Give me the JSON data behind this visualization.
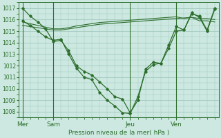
{
  "background_color": "#cce8e0",
  "grid_color": "#a0c8be",
  "line_color": "#2d6e2d",
  "xlabel": "Pression niveau de la mer( hPa )",
  "ylim": [
    1007.5,
    1017.5
  ],
  "yticks": [
    1008,
    1009,
    1010,
    1011,
    1012,
    1013,
    1014,
    1015,
    1016,
    1017
  ],
  "day_labels": [
    "Mer",
    "Sam",
    "Jeu",
    "Ven"
  ],
  "day_positions": [
    0,
    4,
    14,
    20
  ],
  "vline_positions": [
    0,
    4,
    14,
    20
  ],
  "n_points": 26,
  "series1": [
    1017.0,
    1016.3,
    1015.8,
    1015.2,
    1014.1,
    1014.2,
    1013.3,
    1012.0,
    1011.5,
    1011.2,
    1010.6,
    1010.0,
    1009.3,
    1009.1,
    1007.9,
    1009.0,
    1011.7,
    1012.3,
    1012.2,
    1013.5,
    1015.0,
    1015.1,
    1016.6,
    1016.2,
    1015.0,
    1016.9
  ],
  "series2": [
    1015.5,
    1015.4,
    1015.3,
    1015.2,
    1015.1,
    1015.1,
    1015.2,
    1015.3,
    1015.4,
    1015.5,
    1015.6,
    1015.65,
    1015.7,
    1015.75,
    1015.8,
    1015.85,
    1015.9,
    1015.95,
    1016.0,
    1016.05,
    1016.1,
    1016.15,
    1016.2,
    1016.1,
    1016.1,
    1016.0
  ],
  "series3": [
    1015.8,
    1015.65,
    1015.5,
    1015.35,
    1015.2,
    1015.2,
    1015.3,
    1015.45,
    1015.55,
    1015.65,
    1015.75,
    1015.8,
    1015.85,
    1015.9,
    1015.95,
    1016.0,
    1016.05,
    1016.1,
    1016.15,
    1016.2,
    1016.25,
    1016.1,
    1016.2,
    1015.9,
    1015.9,
    1015.8
  ],
  "series4": [
    1015.9,
    1015.5,
    1015.0,
    1014.5,
    1014.2,
    1014.3,
    1013.0,
    1011.8,
    1011.0,
    1010.8,
    1009.7,
    1009.0,
    1008.5,
    1007.9,
    1007.85,
    1009.3,
    1011.5,
    1012.1,
    1012.2,
    1013.8,
    1015.4,
    1015.1,
    1016.5,
    1016.3,
    1015.1,
    1017.0
  ]
}
